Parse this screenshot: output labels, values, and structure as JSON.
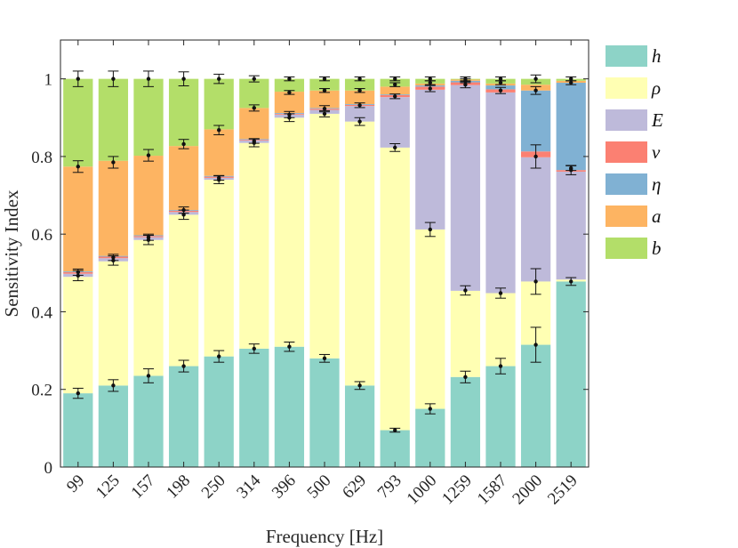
{
  "chart_data": {
    "type": "bar",
    "stacked": true,
    "title": "",
    "xlabel": "Frequency [Hz]",
    "ylabel": "Sensitivity Index",
    "ylim": [
      0,
      1.1
    ],
    "yticks": [
      "0",
      "0.2",
      "0.4",
      "0.6",
      "0.8",
      "1"
    ],
    "ytick_values": [
      0,
      0.2,
      0.4,
      0.6,
      0.8,
      1.0
    ],
    "categories": [
      "99",
      "125",
      "157",
      "198",
      "250",
      "314",
      "396",
      "500",
      "629",
      "793",
      "1000",
      "1259",
      "1587",
      "2000",
      "2519"
    ],
    "legend_position": "outside-right",
    "series": [
      {
        "name": "h",
        "label": "h",
        "color": "#8dd3c7",
        "values": [
          0.19,
          0.21,
          0.235,
          0.26,
          0.285,
          0.305,
          0.31,
          0.28,
          0.21,
          0.095,
          0.15,
          0.232,
          0.26,
          0.315,
          0.478
        ]
      },
      {
        "name": "rho",
        "label": "ρ",
        "color": "#ffffb3",
        "values": [
          0.3,
          0.32,
          0.35,
          0.39,
          0.455,
          0.53,
          0.59,
          0.63,
          0.68,
          0.728,
          0.462,
          0.222,
          0.188,
          0.163,
          0.005
        ]
      },
      {
        "name": "E",
        "label": "E",
        "color": "#bebada",
        "values": [
          0.008,
          0.008,
          0.007,
          0.007,
          0.005,
          0.006,
          0.008,
          0.01,
          0.04,
          0.13,
          0.36,
          0.53,
          0.517,
          0.32,
          0.278
        ]
      },
      {
        "name": "nu",
        "label": "ν",
        "color": "#fb8072",
        "values": [
          0.004,
          0.004,
          0.003,
          0.003,
          0.003,
          0.002,
          0.002,
          0.003,
          0.003,
          0.005,
          0.008,
          0.007,
          0.008,
          0.015,
          0.004
        ]
      },
      {
        "name": "eta",
        "label": "η",
        "color": "#80b1d3",
        "values": [
          0.002,
          0.002,
          0.002,
          0.002,
          0.002,
          0.002,
          0.002,
          0.002,
          0.002,
          0.002,
          0.003,
          0.004,
          0.01,
          0.157,
          0.225
        ]
      },
      {
        "name": "a",
        "label": "a",
        "color": "#fdb462",
        "values": [
          0.27,
          0.245,
          0.205,
          0.165,
          0.12,
          0.08,
          0.055,
          0.045,
          0.035,
          0.02,
          0.005,
          0.003,
          0.005,
          0.015,
          0.005
        ]
      },
      {
        "name": "b",
        "label": "b",
        "color": "#b3de69",
        "values": [
          0.226,
          0.211,
          0.198,
          0.173,
          0.13,
          0.075,
          0.033,
          0.03,
          0.03,
          0.02,
          0.012,
          0.002,
          0.012,
          0.015,
          0.005
        ]
      }
    ],
    "error_markers": [
      [
        [
          0.19,
          0.013
        ],
        [
          0.493,
          0.013
        ],
        [
          0.502,
          0.008
        ],
        [
          0.774,
          0.015
        ],
        [
          1.0,
          0.02
        ]
      ],
      [
        [
          0.21,
          0.015
        ],
        [
          0.532,
          0.012
        ],
        [
          0.54,
          0.008
        ],
        [
          0.785,
          0.015
        ],
        [
          1.0,
          0.02
        ]
      ],
      [
        [
          0.235,
          0.018
        ],
        [
          0.585,
          0.012
        ],
        [
          0.592,
          0.008
        ],
        [
          0.803,
          0.015
        ],
        [
          1.0,
          0.02
        ]
      ],
      [
        [
          0.26,
          0.015
        ],
        [
          0.65,
          0.012
        ],
        [
          0.662,
          0.008
        ],
        [
          0.832,
          0.012
        ],
        [
          1.0,
          0.018
        ]
      ],
      [
        [
          0.285,
          0.015
        ],
        [
          0.74,
          0.01
        ],
        [
          0.745,
          0.006
        ],
        [
          0.868,
          0.012
        ],
        [
          1.0,
          0.012
        ]
      ],
      [
        [
          0.305,
          0.012
        ],
        [
          0.835,
          0.01
        ],
        [
          0.84,
          0.006
        ],
        [
          0.925,
          0.008
        ],
        [
          1.0,
          0.008
        ]
      ],
      [
        [
          0.31,
          0.012
        ],
        [
          0.9,
          0.01
        ],
        [
          0.908,
          0.008
        ],
        [
          0.965,
          0.005
        ],
        [
          1.0,
          0.005
        ]
      ],
      [
        [
          0.28,
          0.01
        ],
        [
          0.91,
          0.008
        ],
        [
          0.923,
          0.008
        ],
        [
          0.97,
          0.005
        ],
        [
          1.0,
          0.005
        ]
      ],
      [
        [
          0.21,
          0.01
        ],
        [
          0.89,
          0.01
        ],
        [
          0.932,
          0.006
        ],
        [
          0.97,
          0.005
        ],
        [
          1.0,
          0.005
        ]
      ],
      [
        [
          0.095,
          0.005
        ],
        [
          0.823,
          0.01
        ],
        [
          0.955,
          0.006
        ],
        [
          0.985,
          0.005
        ],
        [
          1.0,
          0.005
        ]
      ],
      [
        [
          0.15,
          0.013
        ],
        [
          0.612,
          0.018
        ],
        [
          0.975,
          0.008
        ],
        [
          0.99,
          0.005
        ],
        [
          1.0,
          0.005
        ]
      ],
      [
        [
          0.232,
          0.015
        ],
        [
          0.455,
          0.012
        ],
        [
          0.985,
          0.008
        ],
        [
          0.995,
          0.005
        ],
        [
          1.0,
          0.005
        ]
      ],
      [
        [
          0.26,
          0.02
        ],
        [
          0.448,
          0.013
        ],
        [
          0.97,
          0.008
        ],
        [
          0.99,
          0.005
        ],
        [
          1.0,
          0.005
        ]
      ],
      [
        [
          0.315,
          0.045
        ],
        [
          0.478,
          0.033
        ],
        [
          0.8,
          0.03
        ],
        [
          0.97,
          0.01
        ],
        [
          1.0,
          0.01
        ]
      ],
      [
        [
          0.478,
          0.01
        ],
        [
          0.765,
          0.012
        ],
        [
          0.77,
          0.006
        ],
        [
          0.99,
          0.005
        ],
        [
          1.0,
          0.005
        ]
      ]
    ]
  }
}
